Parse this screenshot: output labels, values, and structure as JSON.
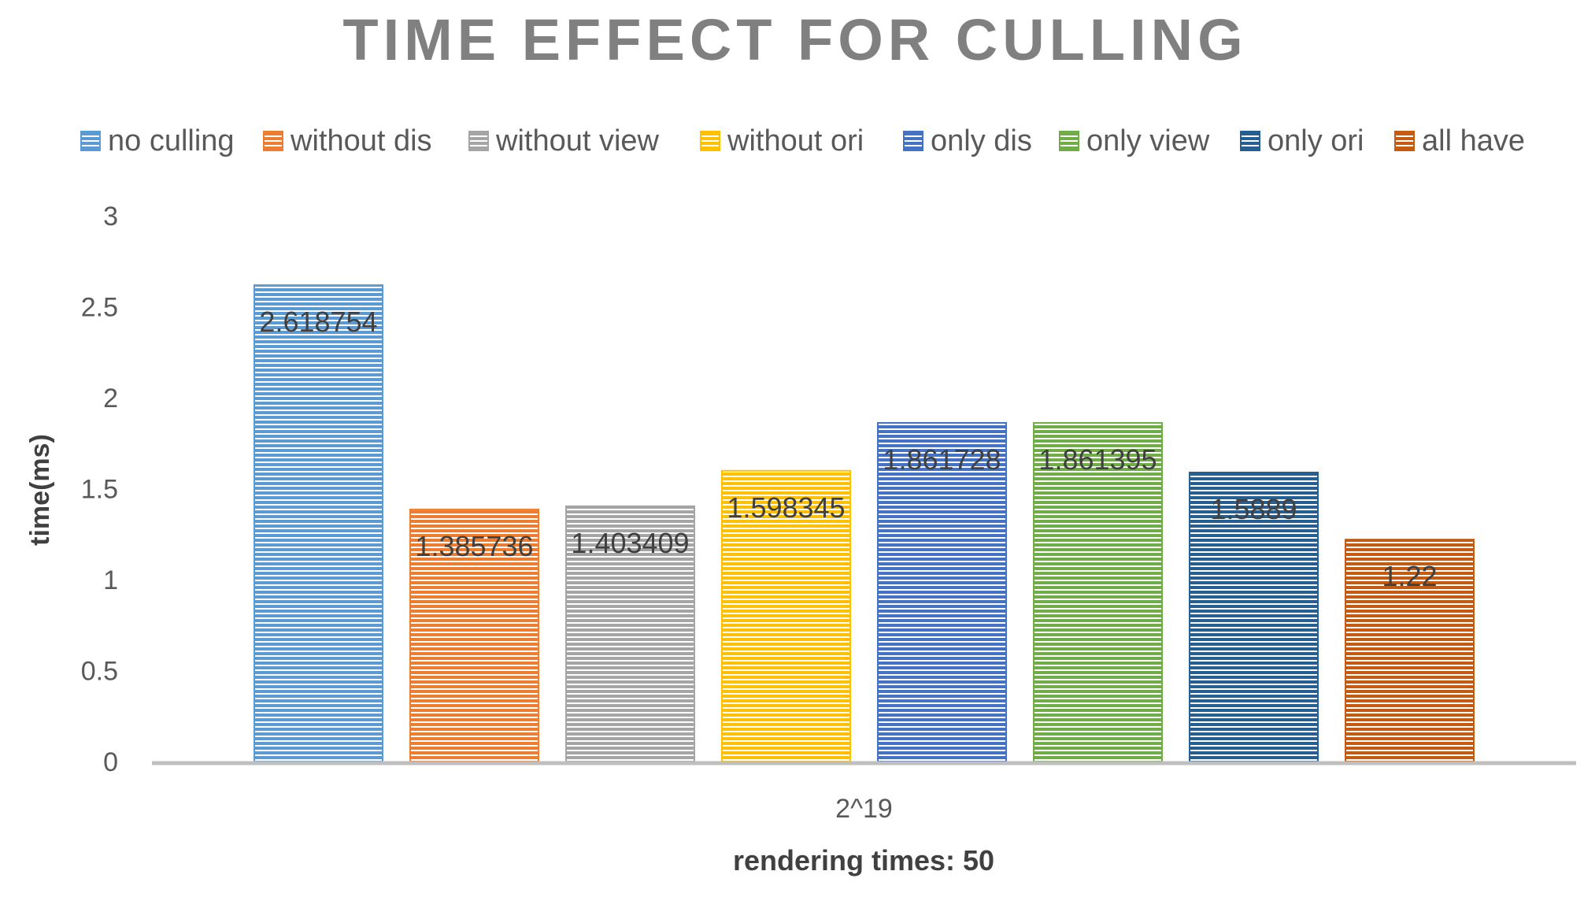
{
  "chart_data": {
    "type": "bar",
    "title": "TIME EFFECT FOR CULLING",
    "xlabel": "rendering times: 50",
    "ylabel": "time(ms)",
    "categories": [
      "2^19"
    ],
    "ylim": [
      0,
      3
    ],
    "yticks": [
      "0",
      "0.5",
      "1",
      "1.5",
      "2",
      "2.5",
      "3"
    ],
    "grid": false,
    "legend_position": "top",
    "series": [
      {
        "name": "no culling",
        "values": [
          2.618754
        ],
        "label": "2.618754",
        "color": "#5B9BD5"
      },
      {
        "name": "without dis",
        "values": [
          1.385736
        ],
        "label": "1.385736",
        "color": "#ED7D31"
      },
      {
        "name": "without view",
        "values": [
          1.403409
        ],
        "label": "1.403409",
        "color": "#A5A5A5"
      },
      {
        "name": "without ori",
        "values": [
          1.598345
        ],
        "label": "1.598345",
        "color": "#FFC000"
      },
      {
        "name": "only dis",
        "values": [
          1.861728
        ],
        "label": "1.861728",
        "color": "#4472C4"
      },
      {
        "name": "only view",
        "values": [
          1.861395
        ],
        "label": "1.861395",
        "color": "#70AD47"
      },
      {
        "name": "only ori",
        "values": [
          1.5889
        ],
        "label": "1.5889",
        "color": "#255E91"
      },
      {
        "name": "all have",
        "values": [
          1.22
        ],
        "label": "1.22",
        "color": "#C55A11"
      }
    ]
  }
}
